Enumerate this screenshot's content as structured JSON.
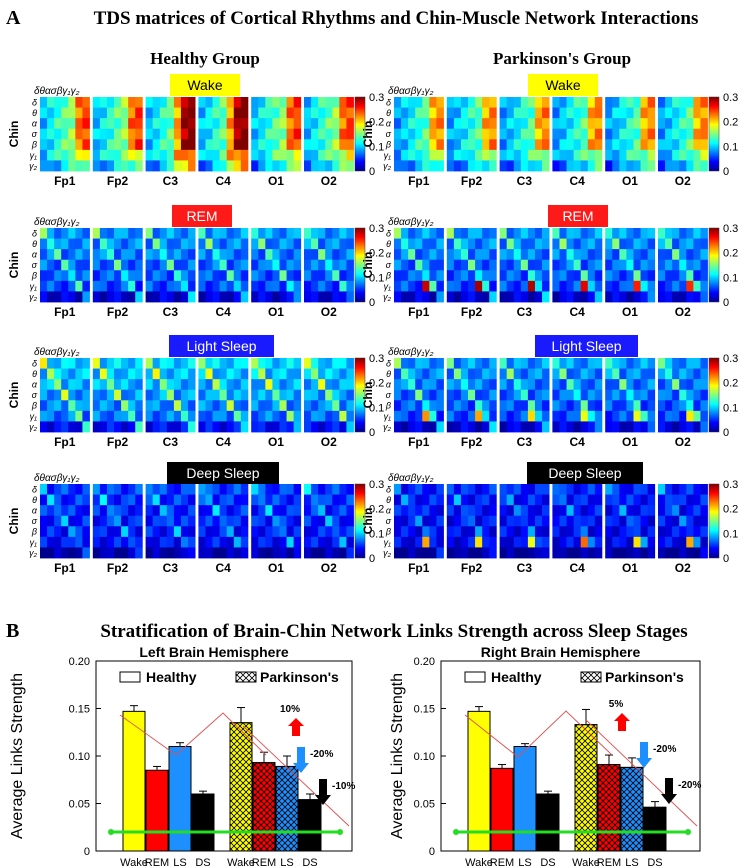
{
  "panel_a": {
    "letter": "A",
    "title": "TDS matrices of Cortical Rhythms and Chin-Muscle Network Interactions",
    "group_titles": [
      "Healthy Group",
      "Parkinson's Group"
    ],
    "row_label": "Chin",
    "band_header": "δθασβγ₁γ₂",
    "bands": [
      "δ",
      "θ",
      "α",
      "σ",
      "β",
      "γ₁",
      "γ₂"
    ],
    "channels": [
      "Fp1",
      "Fp2",
      "C3",
      "C4",
      "O1",
      "O2"
    ],
    "stages": [
      {
        "label": "Wake",
        "bg": "#ffff00",
        "fg": "#000000"
      },
      {
        "label": "REM",
        "bg": "#ff1a1a",
        "fg": "#ffffff"
      },
      {
        "label": "Light Sleep",
        "bg": "#1a1aff",
        "fg": "#ffffff"
      },
      {
        "label": "Deep Sleep",
        "bg": "#000000",
        "fg": "#ffffff"
      }
    ],
    "colorbar": {
      "min": 0,
      "max": 0.3,
      "ticks": [
        "0.3",
        "0.2",
        "0.1",
        "0"
      ]
    }
  },
  "panel_b": {
    "letter": "B",
    "title": "Stratification of Brain-Chin Network Links Strength across Sleep Stages",
    "ylabel": "Average Links Strength",
    "legend": [
      "Healthy",
      "Parkinson's"
    ]
  },
  "chart_data": [
    {
      "type": "heatmap",
      "title": "TDS matrices of Cortical Rhythms and Chin-Muscle Network Interactions",
      "rows": [
        "δ",
        "θ",
        "α",
        "σ",
        "β",
        "γ₁",
        "γ₂"
      ],
      "cols": [
        "δ",
        "θ",
        "α",
        "σ",
        "β",
        "γ₁",
        "γ₂"
      ],
      "channels": [
        "Fp1",
        "Fp2",
        "C3",
        "C4",
        "O1",
        "O2"
      ],
      "groups": [
        "Healthy Group",
        "Parkinson's Group"
      ],
      "stages": [
        "Wake",
        "REM",
        "Light Sleep",
        "Deep Sleep"
      ],
      "colorbar_range": [
        0,
        0.3
      ],
      "mean_level": {
        "Healthy Group": {
          "Wake": 0.17,
          "REM": 0.09,
          "Light Sleep": 0.11,
          "Deep Sleep": 0.06
        },
        "Parkinson's Group": {
          "Wake": 0.15,
          "REM": 0.09,
          "Light Sleep": 0.09,
          "Deep Sleep": 0.05
        }
      }
    },
    {
      "type": "bar",
      "title": "Left Brain Hemisphere",
      "xlabel": "",
      "ylabel": "Average Links Strength",
      "ylim": [
        0,
        0.2
      ],
      "yticks": [
        "0",
        "0.05",
        "0.10",
        "0.15",
        "0.20"
      ],
      "categories": [
        "Wake",
        "REM",
        "LS",
        "DS"
      ],
      "colors": [
        "#ffff00",
        "#ff0000",
        "#1e8fff",
        "#000000"
      ],
      "series": [
        {
          "name": "Healthy",
          "values": [
            0.147,
            0.085,
            0.11,
            0.06
          ],
          "errors": [
            0.006,
            0.004,
            0.004,
            0.003
          ]
        },
        {
          "name": "Parkinson's",
          "values": [
            0.135,
            0.093,
            0.089,
            0.054
          ],
          "errors": [
            0.016,
            0.011,
            0.011,
            0.006
          ]
        }
      ],
      "reference_line": 0.02,
      "annotations": [
        "10%",
        "-20%",
        "-10%"
      ]
    },
    {
      "type": "bar",
      "title": "Right Brain Hemisphere",
      "xlabel": "",
      "ylabel": "Average Links Strength",
      "ylim": [
        0,
        0.2
      ],
      "yticks": [
        "0",
        "0.05",
        "0.10",
        "0.15",
        "0.20"
      ],
      "categories": [
        "Wake",
        "REM",
        "LS",
        "DS"
      ],
      "colors": [
        "#ffff00",
        "#ff0000",
        "#1e8fff",
        "#000000"
      ],
      "series": [
        {
          "name": "Healthy",
          "values": [
            0.147,
            0.087,
            0.11,
            0.06
          ],
          "errors": [
            0.005,
            0.004,
            0.003,
            0.003
          ]
        },
        {
          "name": "Parkinson's",
          "values": [
            0.133,
            0.091,
            0.088,
            0.046
          ],
          "errors": [
            0.016,
            0.01,
            0.01,
            0.006
          ]
        }
      ],
      "reference_line": 0.02,
      "annotations": [
        "5%",
        "-20%",
        "-20%"
      ]
    }
  ]
}
